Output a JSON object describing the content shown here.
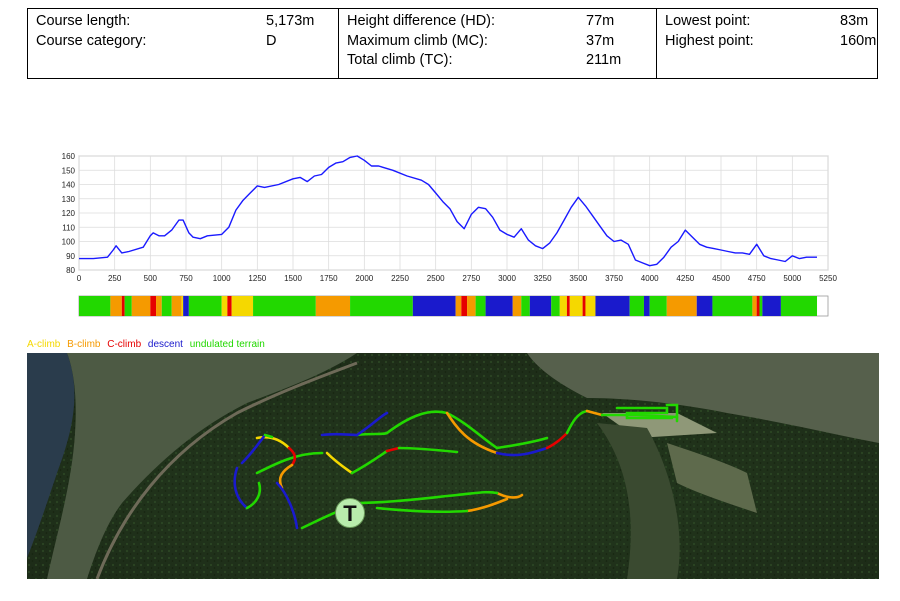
{
  "stats": {
    "course_length_label": "Course length:",
    "course_length_value": "5,173m",
    "course_category_label": "Course category:",
    "course_category_value": "D",
    "hd_label": "Height difference (HD):",
    "hd_value": "77m",
    "mc_label": "Maximum climb (MC):",
    "mc_value": "37m",
    "tc_label": "Total climb (TC):",
    "tc_value": "211m",
    "lowest_label": "Lowest point:",
    "lowest_value": "83m",
    "highest_label": "Highest point:",
    "highest_value": "160m"
  },
  "chart_data": {
    "type": "line",
    "title": "",
    "xlabel": "",
    "ylabel": "",
    "xlim": [
      0,
      5250
    ],
    "ylim": [
      80,
      160
    ],
    "grid": true,
    "line_color": "#1a1aff",
    "x_ticks": [
      0,
      250,
      500,
      750,
      1000,
      1250,
      1500,
      1750,
      2000,
      2250,
      2500,
      2750,
      3000,
      3250,
      3500,
      3750,
      4000,
      4250,
      4500,
      4750,
      5000,
      5250
    ],
    "y_ticks": [
      80,
      90,
      100,
      110,
      120,
      130,
      140,
      150,
      160
    ],
    "series": [
      {
        "x": [
          0,
          100,
          200,
          240,
          260,
          300,
          350,
          450,
          500,
          520,
          560,
          600,
          650,
          700,
          730,
          770,
          800,
          850,
          900,
          1000,
          1050,
          1100,
          1150,
          1200,
          1250,
          1300,
          1400,
          1500,
          1550,
          1600,
          1650,
          1700,
          1750,
          1800,
          1850,
          1900,
          1950,
          2000,
          2050,
          2100,
          2200,
          2300,
          2400,
          2450,
          2500,
          2550,
          2600,
          2650,
          2700,
          2750,
          2800,
          2850,
          2900,
          2950,
          3000,
          3050,
          3100,
          3150,
          3200,
          3250,
          3300,
          3350,
          3400,
          3450,
          3500,
          3550,
          3600,
          3650,
          3700,
          3750,
          3800,
          3850,
          3900,
          3950,
          4000,
          4050,
          4100,
          4150,
          4200,
          4250,
          4300,
          4350,
          4400,
          4450,
          4500,
          4550,
          4600,
          4650,
          4700,
          4750,
          4800,
          4850,
          4900,
          4950,
          5000,
          5050,
          5100,
          5173
        ],
        "y": [
          88,
          88,
          89,
          94,
          97,
          92,
          93,
          96,
          104,
          106,
          104,
          104,
          108,
          115,
          115,
          106,
          103,
          102,
          104,
          105,
          110,
          122,
          129,
          134,
          139,
          138,
          140,
          144,
          145,
          142,
          146,
          147,
          152,
          155,
          156,
          159,
          160,
          157,
          153,
          153,
          150,
          146,
          143,
          140,
          134,
          128,
          123,
          114,
          109,
          119,
          124,
          123,
          117,
          108,
          105,
          103,
          109,
          101,
          97,
          95,
          99,
          106,
          115,
          124,
          131,
          125,
          118,
          111,
          104,
          100,
          101,
          98,
          87,
          85,
          83,
          84,
          89,
          96,
          100,
          108,
          103,
          98,
          96,
          95,
          94,
          93,
          92,
          92,
          91,
          98,
          90,
          88,
          87,
          86,
          90,
          88,
          89,
          89
        ]
      }
    ],
    "terrain_segments": [
      {
        "type": "undulated",
        "from": 0,
        "to": 220
      },
      {
        "type": "B",
        "from": 220,
        "to": 300
      },
      {
        "type": "C",
        "from": 300,
        "to": 320
      },
      {
        "type": "undulated",
        "from": 320,
        "to": 370
      },
      {
        "type": "B",
        "from": 370,
        "to": 500
      },
      {
        "type": "C",
        "from": 500,
        "to": 540
      },
      {
        "type": "B",
        "from": 540,
        "to": 580
      },
      {
        "type": "undulated",
        "from": 580,
        "to": 650
      },
      {
        "type": "B",
        "from": 650,
        "to": 720
      },
      {
        "type": "A",
        "from": 720,
        "to": 730
      },
      {
        "type": "descent",
        "from": 730,
        "to": 770
      },
      {
        "type": "undulated",
        "from": 770,
        "to": 1000
      },
      {
        "type": "A",
        "from": 1000,
        "to": 1040
      },
      {
        "type": "C",
        "from": 1040,
        "to": 1070
      },
      {
        "type": "A",
        "from": 1070,
        "to": 1220
      },
      {
        "type": "undulated",
        "from": 1220,
        "to": 1660
      },
      {
        "type": "B",
        "from": 1660,
        "to": 1900
      },
      {
        "type": "undulated",
        "from": 1900,
        "to": 2340
      },
      {
        "type": "descent",
        "from": 2340,
        "to": 2640
      },
      {
        "type": "B",
        "from": 2640,
        "to": 2680
      },
      {
        "type": "C",
        "from": 2680,
        "to": 2720
      },
      {
        "type": "B",
        "from": 2720,
        "to": 2780
      },
      {
        "type": "undulated",
        "from": 2780,
        "to": 2850
      },
      {
        "type": "descent",
        "from": 2850,
        "to": 3040
      },
      {
        "type": "B",
        "from": 3040,
        "to": 3100
      },
      {
        "type": "undulated",
        "from": 3100,
        "to": 3160
      },
      {
        "type": "descent",
        "from": 3160,
        "to": 3310
      },
      {
        "type": "undulated",
        "from": 3310,
        "to": 3370
      },
      {
        "type": "A",
        "from": 3370,
        "to": 3420
      },
      {
        "type": "C",
        "from": 3420,
        "to": 3440
      },
      {
        "type": "A",
        "from": 3440,
        "to": 3530
      },
      {
        "type": "C",
        "from": 3530,
        "to": 3550
      },
      {
        "type": "A",
        "from": 3550,
        "to": 3620
      },
      {
        "type": "descent",
        "from": 3620,
        "to": 3860
      },
      {
        "type": "undulated",
        "from": 3860,
        "to": 3960
      },
      {
        "type": "descent",
        "from": 3960,
        "to": 4000
      },
      {
        "type": "undulated",
        "from": 4000,
        "to": 4120
      },
      {
        "type": "B",
        "from": 4120,
        "to": 4330
      },
      {
        "type": "descent",
        "from": 4330,
        "to": 4440
      },
      {
        "type": "undulated",
        "from": 4440,
        "to": 4720
      },
      {
        "type": "B",
        "from": 4720,
        "to": 4750
      },
      {
        "type": "C",
        "from": 4750,
        "to": 4770
      },
      {
        "type": "undulated",
        "from": 4770,
        "to": 4790
      },
      {
        "type": "descent",
        "from": 4790,
        "to": 4920
      },
      {
        "type": "undulated",
        "from": 4920,
        "to": 5173
      }
    ]
  },
  "legend": [
    {
      "key": "A",
      "label": "A-climb",
      "color": "#f5d800"
    },
    {
      "key": "B",
      "label": "B-climb",
      "color": "#f59a00"
    },
    {
      "key": "C",
      "label": "C-climb",
      "color": "#e60000"
    },
    {
      "key": "descent",
      "label": "descent",
      "color": "#1a1acc"
    },
    {
      "key": "undulated",
      "label": "undulated terrain",
      "color": "#22d800"
    }
  ],
  "map": {
    "start_marker_label": "T",
    "marker_color": "#b8ecac"
  }
}
